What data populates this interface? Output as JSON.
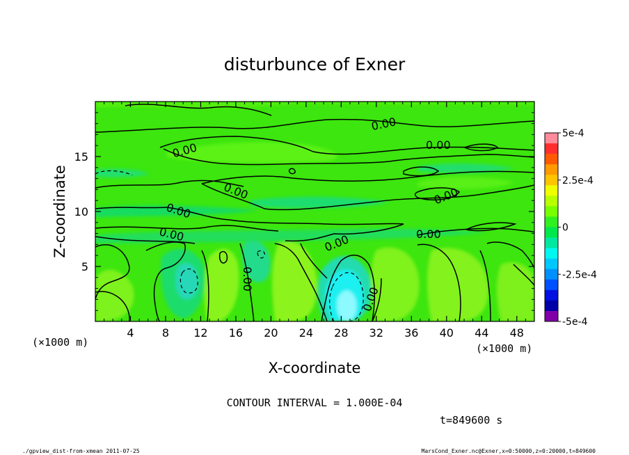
{
  "chart_data": {
    "type": "heatmap",
    "title": "disturbunce of Exner",
    "xlabel": "X-coordinate",
    "ylabel": "Z-coordinate",
    "x_unit": "(×1000 m)",
    "z_unit": "(×1000 m)",
    "xlim": [
      0,
      50
    ],
    "ylim": [
      0,
      20
    ],
    "x_ticks": [
      "4",
      "8",
      "12",
      "16",
      "20",
      "24",
      "28",
      "32",
      "36",
      "40",
      "44",
      "48"
    ],
    "x_tick_values": [
      4,
      8,
      12,
      16,
      20,
      24,
      28,
      32,
      36,
      40,
      44,
      48
    ],
    "y_ticks": [
      "5",
      "10",
      "15"
    ],
    "y_tick_values": [
      5,
      10,
      15
    ],
    "colorbar": {
      "min": -0.0005,
      "max": 0.0005,
      "labels": [
        "5e-4",
        "2.5e-4",
        "0",
        "-2.5e-4",
        "-5e-4"
      ],
      "label_values": [
        0.0005,
        0.00025,
        0,
        -0.00025,
        -0.0005
      ],
      "colors": [
        "#ff8a9a",
        "#ff2e2e",
        "#ff5a00",
        "#ff9a00",
        "#ffc400",
        "#f0ff00",
        "#b8ff00",
        "#78ff00",
        "#30f020",
        "#00e84c",
        "#00e8a0",
        "#00f8f0",
        "#00c8ff",
        "#0090ff",
        "#0050ff",
        "#0010e0",
        "#0000a8",
        "#8000a8"
      ]
    },
    "contour_label": "0.00",
    "contour_interval_text": "CONTOUR INTERVAL = 1.000E-04",
    "time_text": "t=849600 s",
    "footer_left": "./gpview_dist-from-xmean  2011-07-25",
    "footer_right": "MarsCond_Exner.nc@Exner,x=0:50000,z=0:20000,t=849600"
  }
}
